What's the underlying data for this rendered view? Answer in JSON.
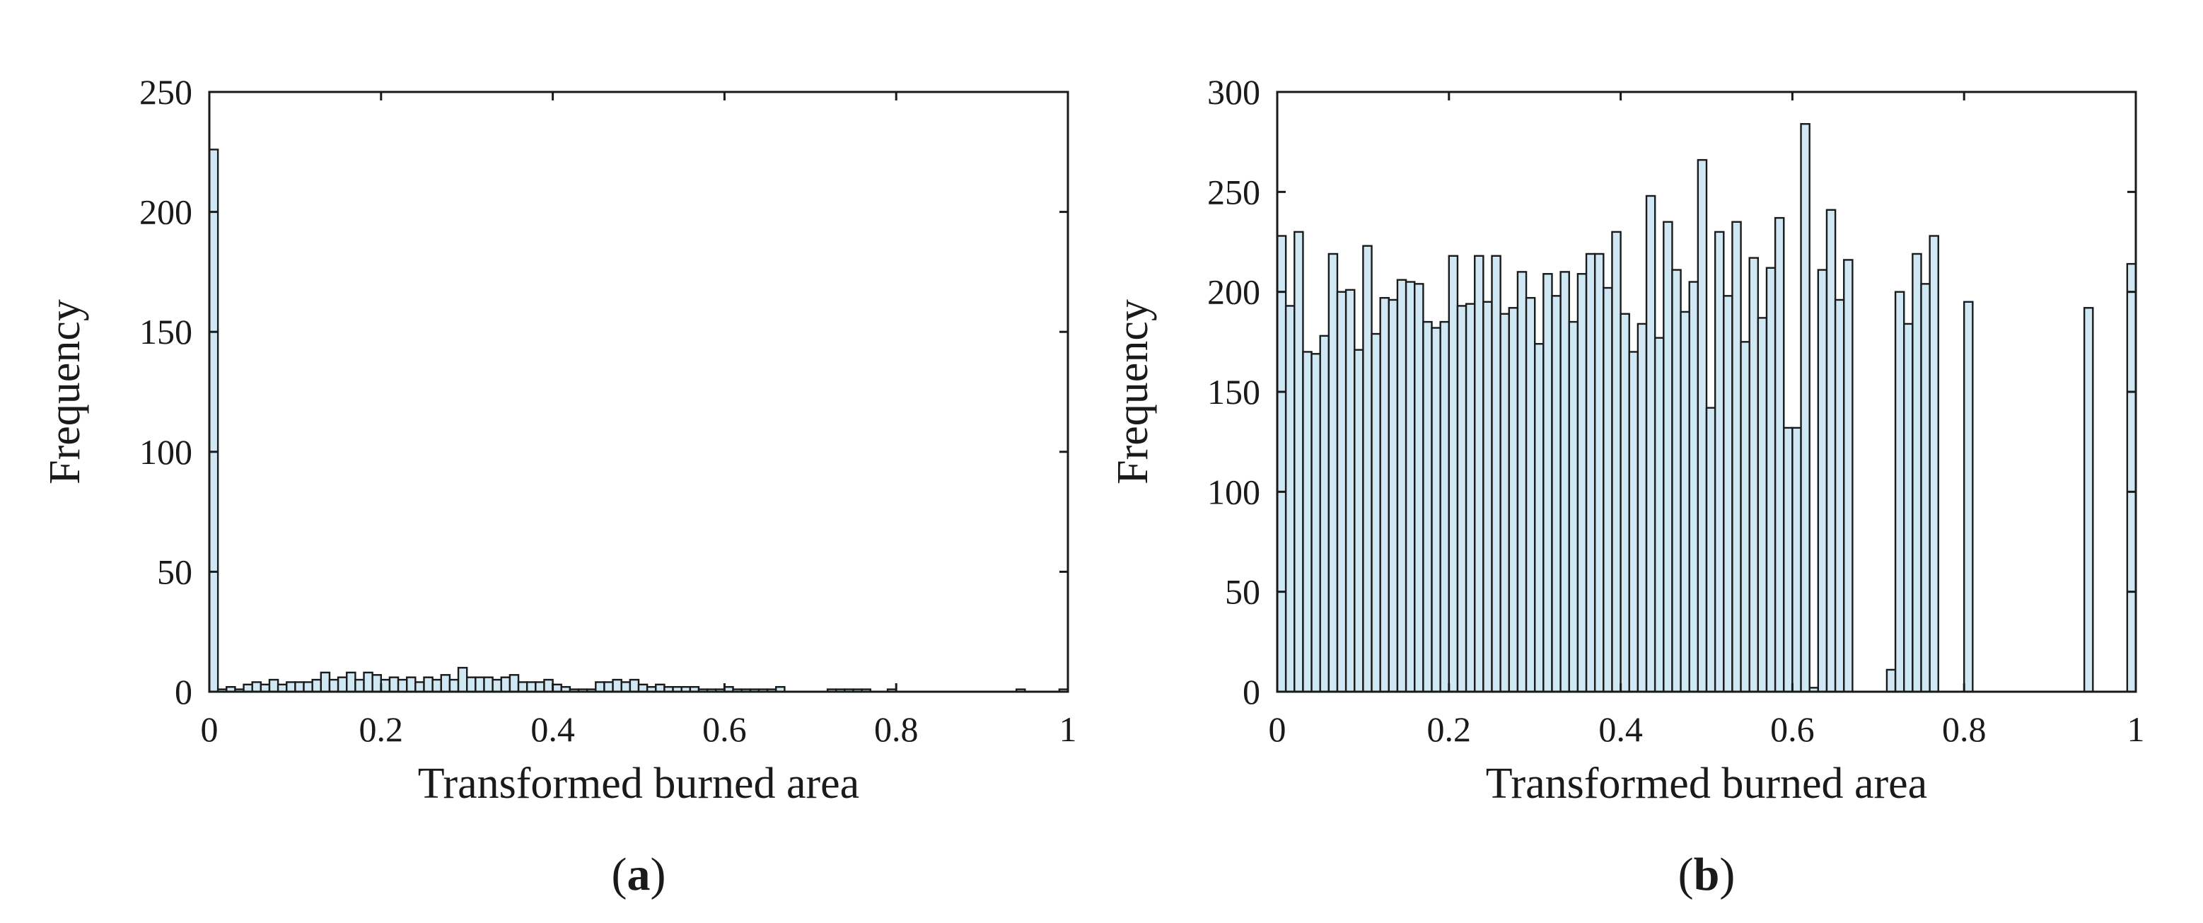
{
  "colors": {
    "bar_fill": "#cfe8f4",
    "bar_stroke": "#1a1a1a",
    "axis": "#1a1a1a"
  },
  "chart_data": [
    {
      "type": "bar",
      "panel_label": "a",
      "xlabel": "Transformed burned area",
      "ylabel": "Frequency",
      "xlim": [
        0,
        1
      ],
      "ylim": [
        0,
        250
      ],
      "xticks": [
        0,
        0.2,
        0.4,
        0.6,
        0.8,
        1
      ],
      "xtick_labels": [
        "0",
        "0.2",
        "0.4",
        "0.6",
        "0.8",
        "1"
      ],
      "yticks": [
        0,
        50,
        100,
        150,
        200,
        250
      ],
      "ytick_labels": [
        "0",
        "50",
        "100",
        "150",
        "200",
        "250"
      ],
      "grid": false,
      "bin_width": 0.01,
      "bin_starts": [
        0.0,
        0.01,
        0.02,
        0.03,
        0.04,
        0.05,
        0.06,
        0.07,
        0.08,
        0.09,
        0.1,
        0.11,
        0.12,
        0.13,
        0.14,
        0.15,
        0.16,
        0.17,
        0.18,
        0.19,
        0.2,
        0.21,
        0.22,
        0.23,
        0.24,
        0.25,
        0.26,
        0.27,
        0.28,
        0.29,
        0.3,
        0.31,
        0.32,
        0.33,
        0.34,
        0.35,
        0.36,
        0.37,
        0.38,
        0.39,
        0.4,
        0.41,
        0.42,
        0.43,
        0.44,
        0.45,
        0.46,
        0.47,
        0.48,
        0.49,
        0.5,
        0.51,
        0.52,
        0.53,
        0.54,
        0.55,
        0.56,
        0.57,
        0.58,
        0.59,
        0.6,
        0.61,
        0.62,
        0.63,
        0.64,
        0.65,
        0.66,
        0.72,
        0.73,
        0.74,
        0.75,
        0.76,
        0.79,
        0.94,
        0.99
      ],
      "values": [
        226,
        1,
        2,
        1,
        3,
        4,
        3,
        5,
        3,
        4,
        4,
        4,
        5,
        8,
        5,
        6,
        8,
        5,
        8,
        7,
        5,
        6,
        5,
        6,
        4,
        6,
        5,
        7,
        5,
        10,
        6,
        6,
        6,
        5,
        6,
        7,
        4,
        4,
        4,
        5,
        3,
        2,
        1,
        1,
        1,
        4,
        4,
        5,
        4,
        5,
        3,
        2,
        3,
        2,
        2,
        2,
        2,
        1,
        1,
        1,
        2,
        1,
        1,
        1,
        1,
        1,
        2,
        1,
        1,
        1,
        1,
        1,
        1,
        1,
        1
      ]
    },
    {
      "type": "bar",
      "panel_label": "b",
      "xlabel": "Transformed burned area",
      "ylabel": "Frequency",
      "xlim": [
        0,
        1
      ],
      "ylim": [
        0,
        300
      ],
      "xticks": [
        0,
        0.2,
        0.4,
        0.6,
        0.8,
        1
      ],
      "xtick_labels": [
        "0",
        "0.2",
        "0.4",
        "0.6",
        "0.8",
        "1"
      ],
      "yticks": [
        0,
        50,
        100,
        150,
        200,
        250,
        300
      ],
      "ytick_labels": [
        "0",
        "50",
        "100",
        "150",
        "200",
        "250",
        "300"
      ],
      "grid": false,
      "bin_width": 0.01,
      "bin_starts": [
        0.0,
        0.01,
        0.02,
        0.03,
        0.04,
        0.05,
        0.06,
        0.07,
        0.08,
        0.09,
        0.1,
        0.11,
        0.12,
        0.13,
        0.14,
        0.15,
        0.16,
        0.17,
        0.18,
        0.19,
        0.2,
        0.21,
        0.22,
        0.23,
        0.24,
        0.25,
        0.26,
        0.27,
        0.28,
        0.29,
        0.3,
        0.31,
        0.32,
        0.33,
        0.34,
        0.35,
        0.36,
        0.37,
        0.38,
        0.39,
        0.4,
        0.41,
        0.42,
        0.43,
        0.44,
        0.45,
        0.46,
        0.47,
        0.48,
        0.49,
        0.5,
        0.51,
        0.52,
        0.53,
        0.54,
        0.55,
        0.56,
        0.57,
        0.58,
        0.59,
        0.6,
        0.61,
        0.62,
        0.63,
        0.64,
        0.65,
        0.66,
        0.71,
        0.72,
        0.73,
        0.74,
        0.75,
        0.76,
        0.8,
        0.94,
        0.99
      ],
      "values": [
        228,
        193,
        230,
        170,
        169,
        178,
        219,
        200,
        201,
        171,
        223,
        179,
        197,
        196,
        206,
        205,
        204,
        185,
        182,
        185,
        218,
        193,
        194,
        218,
        195,
        218,
        189,
        192,
        210,
        197,
        174,
        209,
        198,
        210,
        185,
        209,
        219,
        219,
        202,
        230,
        189,
        170,
        184,
        248,
        177,
        235,
        211,
        190,
        205,
        266,
        142,
        230,
        198,
        235,
        175,
        217,
        187,
        212,
        237,
        132,
        132,
        284,
        2,
        211,
        241,
        196,
        216,
        11,
        200,
        184,
        219,
        204,
        228,
        195,
        192,
        214
      ]
    }
  ]
}
